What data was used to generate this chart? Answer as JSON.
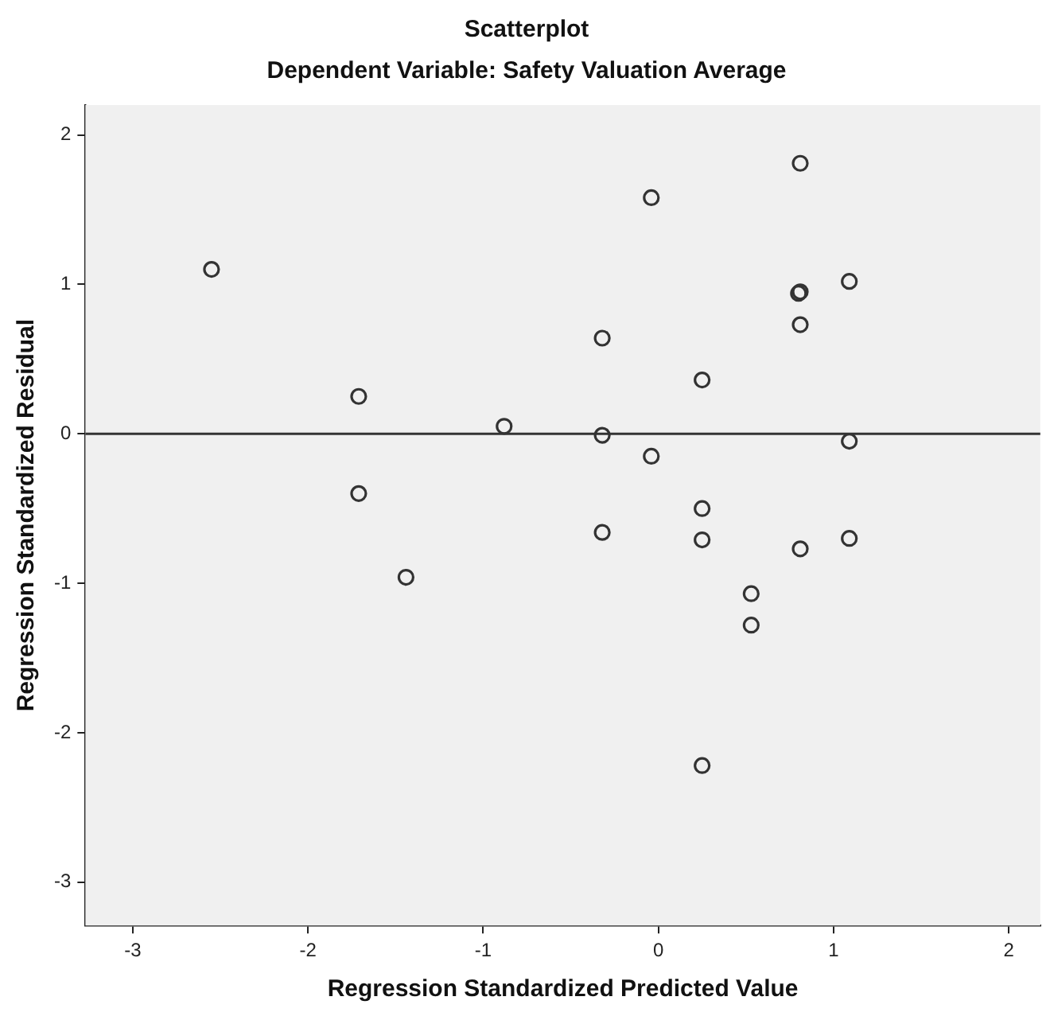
{
  "chart_data": {
    "type": "scatter",
    "title": "Scatterplot",
    "subtitle": "Dependent Variable: Safety Valuation Average",
    "xlabel": "Regression Standardized Predicted Value",
    "ylabel": "Regression Standardized Residual",
    "x": [
      -2.55,
      -1.71,
      -1.71,
      -0.88,
      -1.44,
      0.81,
      -0.04,
      1.09,
      0.81,
      0.8,
      0.81,
      -0.32,
      0.25,
      -0.32,
      -0.04,
      1.09,
      0.25,
      -0.32,
      0.25,
      1.09,
      0.81,
      0.53,
      0.53,
      0.25
    ],
    "values": [
      1.1,
      0.25,
      -0.4,
      0.05,
      -0.96,
      1.81,
      1.58,
      1.02,
      0.95,
      0.94,
      0.73,
      0.64,
      0.36,
      -0.01,
      -0.15,
      -0.05,
      -0.5,
      -0.66,
      -0.71,
      -0.7,
      -0.77,
      -1.07,
      -1.28,
      -2.22
    ],
    "color": "#333333",
    "marker": "circle",
    "xlim": [
      -3.27,
      2.18
    ],
    "xticks": [
      -3,
      -2,
      -1,
      0,
      1,
      2
    ],
    "ylim": [
      -3.29,
      2.2
    ],
    "yticks": [
      -3,
      -2,
      -1,
      0,
      1,
      2
    ],
    "ref_lines": [
      {
        "axis": "y",
        "value": 0,
        "color": "#333333"
      }
    ]
  }
}
